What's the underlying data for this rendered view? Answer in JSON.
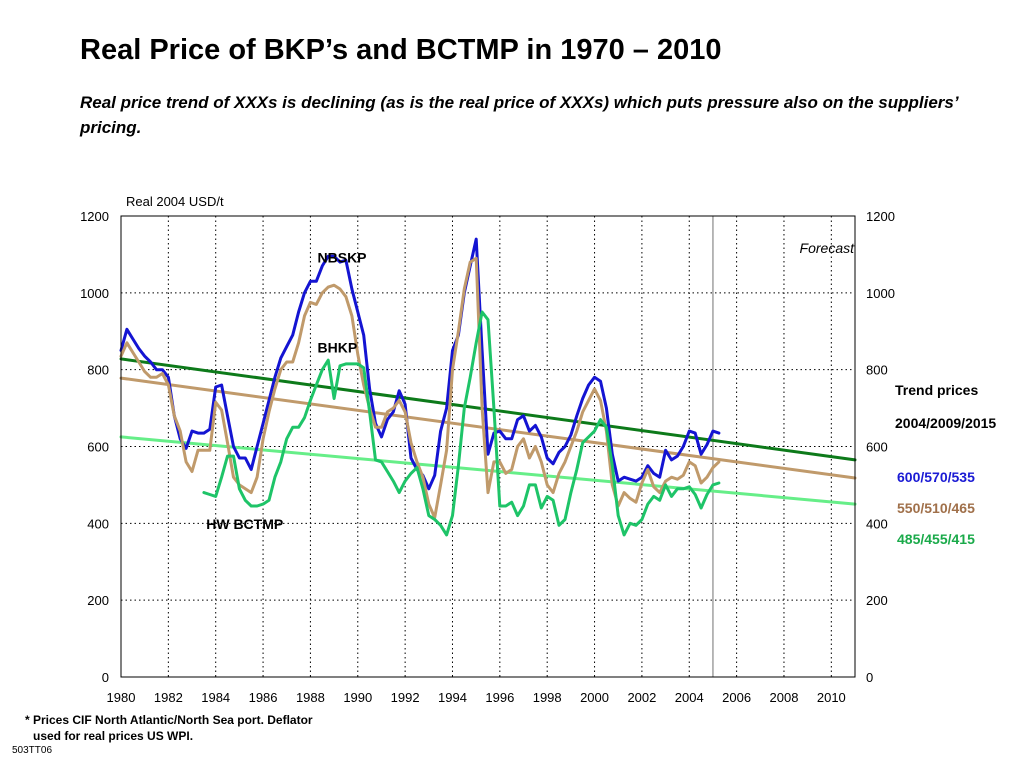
{
  "title": "Real Price of BKP’s and BCTMP in 1970 – 2010",
  "subtitle": "Real price trend of XXXs is declining (as is the real price of XXXs) which puts pressure also on the suppliers’ pricing.",
  "footnote": {
    "line1": "* Prices CIF North Atlantic/North Sea port. Deflator",
    "line2": "used for real prices US WPI."
  },
  "code": "503TT06",
  "side_panel": {
    "heading": "Trend prices",
    "years": "2004/2009/2015",
    "values": [
      {
        "text": "600/570/535",
        "color": "#1a1ad4"
      },
      {
        "text": "550/510/465",
        "color": "#a0704a"
      },
      {
        "text": "485/455/415",
        "color": "#1aaa4a"
      }
    ]
  },
  "chart_data": {
    "type": "line",
    "ylabel": "Real 2004 USD/t",
    "ylim": [
      0,
      1200
    ],
    "xlim": [
      1980,
      2011
    ],
    "yticks": [
      0,
      200,
      400,
      600,
      800,
      1000,
      1200
    ],
    "xticks": [
      1980,
      1982,
      1984,
      1986,
      1988,
      1990,
      1992,
      1994,
      1996,
      1998,
      2000,
      2002,
      2004,
      2006,
      2008,
      2010
    ],
    "forecast_line_x": 2005,
    "forecast_label": "Forecast",
    "grid": true,
    "series": [
      {
        "name": "NBSKP",
        "color": "#1414d2",
        "label_pos": [
          1988.3,
          1092
        ],
        "x": [
          1980,
          1980.25,
          1980.5,
          1980.75,
          1981,
          1981.25,
          1981.5,
          1981.75,
          1982,
          1982.25,
          1982.5,
          1982.75,
          1983,
          1983.25,
          1983.5,
          1983.75,
          1984,
          1984.25,
          1984.5,
          1984.75,
          1985,
          1985.25,
          1985.5,
          1985.75,
          1986,
          1986.25,
          1986.5,
          1986.75,
          1987,
          1987.25,
          1987.5,
          1987.75,
          1988,
          1988.25,
          1988.5,
          1988.75,
          1989,
          1989.25,
          1989.5,
          1989.75,
          1990,
          1990.25,
          1990.5,
          1990.75,
          1991,
          1991.25,
          1991.5,
          1991.75,
          1992,
          1992.25,
          1992.5,
          1992.75,
          1993,
          1993.25,
          1993.5,
          1993.75,
          1994,
          1994.25,
          1994.5,
          1994.75,
          1995,
          1995.25,
          1995.5,
          1995.75,
          1996,
          1996.25,
          1996.5,
          1996.75,
          1997,
          1997.25,
          1997.5,
          1997.75,
          1998,
          1998.25,
          1998.5,
          1998.75,
          1999,
          1999.25,
          1999.5,
          1999.75,
          2000,
          2000.25,
          2000.5,
          2000.75,
          2001,
          2001.25,
          2001.5,
          2001.75,
          2002,
          2002.25,
          2002.5,
          2002.75,
          2003,
          2003.25,
          2003.5,
          2003.75,
          2004,
          2004.25,
          2004.5,
          2004.75,
          2005,
          2005.25
        ],
        "y": [
          850,
          905,
          880,
          855,
          835,
          820,
          800,
          800,
          780,
          680,
          620,
          595,
          640,
          635,
          635,
          645,
          755,
          760,
          680,
          600,
          570,
          570,
          540,
          600,
          660,
          720,
          780,
          830,
          860,
          890,
          950,
          1000,
          1030,
          1030,
          1070,
          1095,
          1095,
          1080,
          1085,
          1010,
          950,
          890,
          750,
          660,
          625,
          670,
          690,
          745,
          710,
          570,
          540,
          525,
          490,
          525,
          640,
          700,
          850,
          890,
          1000,
          1070,
          1140,
          850,
          580,
          635,
          640,
          620,
          620,
          670,
          680,
          640,
          655,
          625,
          570,
          555,
          585,
          600,
          630,
          680,
          725,
          760,
          780,
          770,
          700,
          580,
          510,
          520,
          515,
          510,
          520,
          550,
          530,
          520,
          590,
          565,
          575,
          600,
          640,
          635,
          580,
          605,
          640,
          635
        ]
      },
      {
        "name": "BHKP",
        "color": "#c09a6b",
        "label_pos": [
          1988.3,
          858
        ],
        "x": [
          1980,
          1980.25,
          1980.5,
          1980.75,
          1981,
          1981.25,
          1981.5,
          1981.75,
          1982,
          1982.25,
          1982.5,
          1982.75,
          1983,
          1983.25,
          1983.5,
          1983.75,
          1984,
          1984.25,
          1984.5,
          1984.75,
          1985,
          1985.25,
          1985.5,
          1985.75,
          1986,
          1986.25,
          1986.5,
          1986.75,
          1987,
          1987.25,
          1987.5,
          1987.75,
          1988,
          1988.25,
          1988.5,
          1988.75,
          1989,
          1989.25,
          1989.5,
          1989.75,
          1990,
          1990.25,
          1990.5,
          1990.75,
          1991,
          1991.25,
          1991.5,
          1991.75,
          1992,
          1992.25,
          1992.5,
          1992.75,
          1993,
          1993.25,
          1993.5,
          1993.75,
          1994,
          1994.25,
          1994.5,
          1994.75,
          1995,
          1995.25,
          1995.5,
          1995.75,
          1996,
          1996.25,
          1996.5,
          1996.75,
          1997,
          1997.25,
          1997.5,
          1997.75,
          1998,
          1998.25,
          1998.5,
          1998.75,
          1999,
          1999.25,
          1999.5,
          1999.75,
          2000,
          2000.25,
          2000.5,
          2000.75,
          2001,
          2001.25,
          2001.5,
          2001.75,
          2002,
          2002.25,
          2002.5,
          2002.75,
          2003,
          2003.25,
          2003.5,
          2003.75,
          2004,
          2004.25,
          2004.5,
          2004.75,
          2005,
          2005.25
        ],
        "y": [
          835,
          870,
          845,
          820,
          795,
          780,
          780,
          790,
          760,
          680,
          640,
          560,
          535,
          590,
          590,
          590,
          715,
          695,
          610,
          520,
          500,
          490,
          480,
          520,
          620,
          690,
          750,
          800,
          820,
          820,
          870,
          940,
          975,
          970,
          1000,
          1015,
          1020,
          1010,
          990,
          940,
          840,
          760,
          700,
          650,
          650,
          690,
          700,
          720,
          690,
          610,
          560,
          520,
          450,
          415,
          500,
          590,
          800,
          900,
          1010,
          1080,
          1090,
          700,
          480,
          560,
          560,
          530,
          540,
          600,
          620,
          570,
          600,
          560,
          500,
          480,
          530,
          560,
          600,
          640,
          690,
          720,
          750,
          720,
          640,
          500,
          445,
          480,
          465,
          455,
          505,
          540,
          495,
          480,
          510,
          520,
          515,
          525,
          560,
          550,
          505,
          520,
          545,
          560
        ]
      },
      {
        "name": "HW BCTMP",
        "color": "#1ec468",
        "label_pos": [
          1983.6,
          398
        ],
        "x": [
          1983.5,
          1983.75,
          1984,
          1984.25,
          1984.5,
          1984.75,
          1985,
          1985.25,
          1985.5,
          1985.75,
          1986,
          1986.25,
          1986.5,
          1986.75,
          1987,
          1987.25,
          1987.5,
          1987.75,
          1988,
          1988.25,
          1988.5,
          1988.75,
          1989,
          1989.25,
          1989.5,
          1989.75,
          1990,
          1990.25,
          1990.5,
          1990.75,
          1991,
          1991.25,
          1991.5,
          1991.75,
          1992,
          1992.25,
          1992.5,
          1992.75,
          1993,
          1993.25,
          1993.5,
          1993.75,
          1994,
          1994.25,
          1994.5,
          1994.75,
          1995,
          1995.25,
          1995.5,
          1995.75,
          1996,
          1996.25,
          1996.5,
          1996.75,
          1997,
          1997.25,
          1997.5,
          1997.75,
          1998,
          1998.25,
          1998.5,
          1998.75,
          1999,
          1999.25,
          1999.5,
          1999.75,
          2000,
          2000.25,
          2000.5,
          2000.75,
          2001,
          2001.25,
          2001.5,
          2001.75,
          2002,
          2002.25,
          2002.5,
          2002.75,
          2003,
          2003.25,
          2003.5,
          2003.75,
          2004,
          2004.25,
          2004.5,
          2004.75,
          2005,
          2005.25
        ],
        "y": [
          480,
          475,
          470,
          520,
          575,
          575,
          490,
          460,
          445,
          445,
          450,
          460,
          520,
          560,
          620,
          650,
          650,
          675,
          720,
          760,
          800,
          825,
          725,
          810,
          815,
          815,
          815,
          805,
          690,
          565,
          560,
          535,
          510,
          480,
          510,
          530,
          545,
          490,
          420,
          410,
          395,
          370,
          420,
          550,
          700,
          780,
          870,
          950,
          930,
          700,
          445,
          445,
          455,
          420,
          445,
          500,
          500,
          440,
          470,
          460,
          395,
          410,
          480,
          540,
          610,
          625,
          640,
          670,
          650,
          550,
          420,
          370,
          400,
          395,
          410,
          450,
          470,
          460,
          500,
          470,
          490,
          490,
          495,
          475,
          440,
          475,
          500,
          505
        ]
      },
      {
        "name": "",
        "color": "#0d7a1a",
        "trend": true,
        "x": [
          1980,
          2011
        ],
        "y": [
          828,
          565
        ]
      },
      {
        "name": "",
        "color": "#c09a6b",
        "trend": true,
        "x": [
          1980,
          2011
        ],
        "y": [
          778,
          518
        ]
      },
      {
        "name": "",
        "color": "#66ee88",
        "trend": true,
        "x": [
          1980,
          2011
        ],
        "y": [
          625,
          450
        ]
      }
    ]
  }
}
